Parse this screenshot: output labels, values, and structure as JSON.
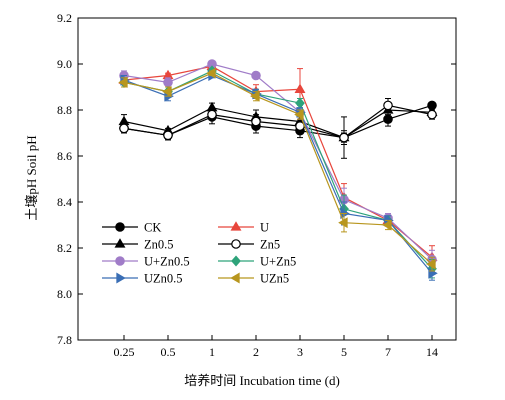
{
  "chart_data": {
    "type": "line",
    "xlabel": "培养时间 Incubation time (d)",
    "ylabel": "土壤pH Soil pH",
    "ylim": [
      7.8,
      9.2
    ],
    "yticks": [
      "7.8",
      "8.0",
      "8.2",
      "8.4",
      "8.6",
      "8.8",
      "9.0",
      "9.2"
    ],
    "categories": [
      "0.25",
      "0.5",
      "1",
      "2",
      "3",
      "5",
      "7",
      "14"
    ],
    "legend_position": "bottom-left",
    "grid": false,
    "series": [
      {
        "name": "CK",
        "color": "#000000",
        "marker": "circle",
        "fill": "filled",
        "values": [
          8.72,
          8.69,
          8.77,
          8.73,
          8.71,
          8.68,
          8.76,
          8.82
        ],
        "errors": [
          0.02,
          0.02,
          0.03,
          0.03,
          0.03,
          0.02,
          0.03,
          0.01
        ]
      },
      {
        "name": "U",
        "color": "#e8463c",
        "marker": "triangle-up",
        "fill": "filled",
        "values": [
          8.93,
          8.95,
          8.99,
          8.88,
          8.89,
          8.42,
          8.32,
          8.16
        ],
        "errors": [
          0.02,
          0.01,
          0.01,
          0.03,
          0.09,
          0.06,
          0.02,
          0.05
        ]
      },
      {
        "name": "Zn0.5",
        "color": "#000000",
        "marker": "triangle-up",
        "fill": "filled",
        "values": [
          8.75,
          8.71,
          8.81,
          8.77,
          8.75,
          8.68,
          8.8,
          8.79
        ],
        "errors": [
          0.03,
          0.01,
          0.02,
          0.03,
          0.02,
          0.03,
          0.02,
          0.02
        ]
      },
      {
        "name": "Zn5",
        "color": "#000000",
        "marker": "circle",
        "fill": "open",
        "values": [
          8.72,
          8.69,
          8.78,
          8.75,
          8.73,
          8.68,
          8.82,
          8.78
        ],
        "errors": [
          0.02,
          0.02,
          0.02,
          0.03,
          0.03,
          0.09,
          0.03,
          0.02
        ]
      },
      {
        "name": "U+Zn0.5",
        "color": "#a07cc8",
        "marker": "circle",
        "fill": "filled",
        "values": [
          8.95,
          8.92,
          9.0,
          8.95,
          8.79,
          8.41,
          8.33,
          8.15
        ],
        "errors": [
          0.02,
          0.02,
          0.01,
          0.01,
          0.03,
          0.05,
          0.02,
          0.04
        ]
      },
      {
        "name": "U+Zn5",
        "color": "#2ea37a",
        "marker": "diamond",
        "fill": "filled",
        "values": [
          8.92,
          8.88,
          8.97,
          8.87,
          8.83,
          8.37,
          8.32,
          8.11
        ],
        "errors": [
          0.02,
          0.02,
          0.01,
          0.02,
          0.02,
          0.06,
          0.02,
          0.04
        ]
      },
      {
        "name": "UZn0.5",
        "color": "#3a6eb5",
        "marker": "triangle-right",
        "fill": "filled",
        "values": [
          8.93,
          8.86,
          8.95,
          8.87,
          8.79,
          8.35,
          8.32,
          8.09
        ],
        "errors": [
          0.02,
          0.02,
          0.01,
          0.02,
          0.02,
          0.05,
          0.02,
          0.03
        ]
      },
      {
        "name": "UZn5",
        "color": "#b8961e",
        "marker": "triangle-left",
        "fill": "filled",
        "values": [
          8.92,
          8.88,
          8.96,
          8.86,
          8.78,
          8.31,
          8.3,
          8.13
        ],
        "errors": [
          0.02,
          0.02,
          0.01,
          0.02,
          0.02,
          0.04,
          0.02,
          0.03
        ]
      }
    ]
  }
}
